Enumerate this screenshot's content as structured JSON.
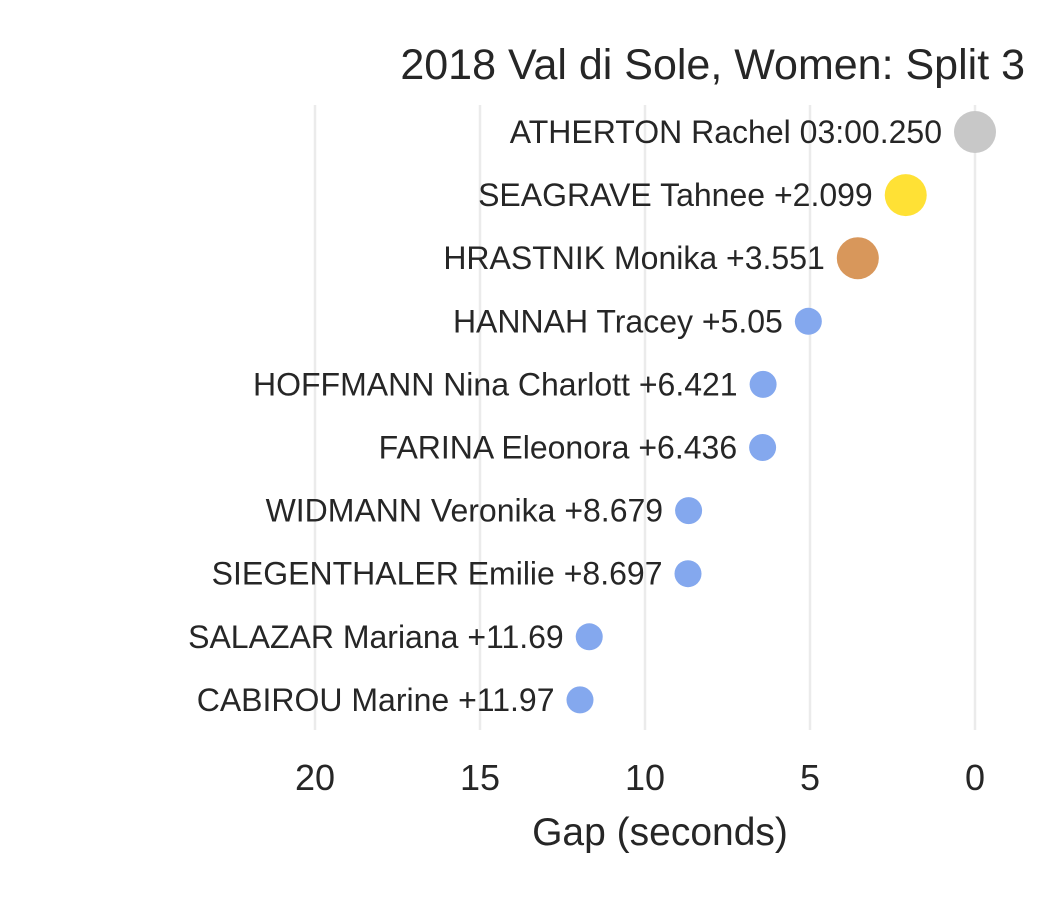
{
  "chart_data": {
    "type": "scatter",
    "title": "2018 Val di Sole, Women: Split 3",
    "xlabel": "Gap (seconds)",
    "ylabel": "",
    "x_axis_inverted": true,
    "xlim": [
      22,
      -0.7
    ],
    "x_ticks": [
      20,
      15,
      10,
      5,
      0
    ],
    "x_tick_labels": [
      "20",
      "15",
      "10",
      "5",
      "0"
    ],
    "grid": "vertical",
    "legend": "none",
    "colors": {
      "gold": "#ffe135",
      "silver": "#c8c8c8",
      "bronze": "#d8975b",
      "other": "#84a8ee"
    },
    "points": [
      {
        "name": "ATHERTON Rachel",
        "label": "ATHERTON Rachel 03:00.250",
        "gap": 0,
        "medal": "silver"
      },
      {
        "name": "SEAGRAVE Tahnee",
        "label": "SEAGRAVE Tahnee +2.099",
        "gap": 2.099,
        "medal": "gold"
      },
      {
        "name": "HRASTNIK Monika",
        "label": "HRASTNIK Monika +3.551",
        "gap": 3.551,
        "medal": "bronze"
      },
      {
        "name": "HANNAH Tracey",
        "label": "HANNAH Tracey +5.05",
        "gap": 5.05,
        "medal": "other"
      },
      {
        "name": "HOFFMANN Nina Charlott",
        "label": "HOFFMANN Nina Charlott +6.421",
        "gap": 6.421,
        "medal": "other"
      },
      {
        "name": "FARINA Eleonora",
        "label": "FARINA Eleonora +6.436",
        "gap": 6.436,
        "medal": "other"
      },
      {
        "name": "WIDMANN Veronika",
        "label": "WIDMANN Veronika +8.679",
        "gap": 8.679,
        "medal": "other"
      },
      {
        "name": "SIEGENTHALER Emilie",
        "label": "SIEGENTHALER Emilie +8.697",
        "gap": 8.697,
        "medal": "other"
      },
      {
        "name": "SALAZAR Mariana",
        "label": "SALAZAR Mariana +11.69",
        "gap": 11.69,
        "medal": "other"
      },
      {
        "name": "CABIROU Marine",
        "label": "CABIROU Marine +11.97",
        "gap": 11.97,
        "medal": "other"
      }
    ]
  }
}
